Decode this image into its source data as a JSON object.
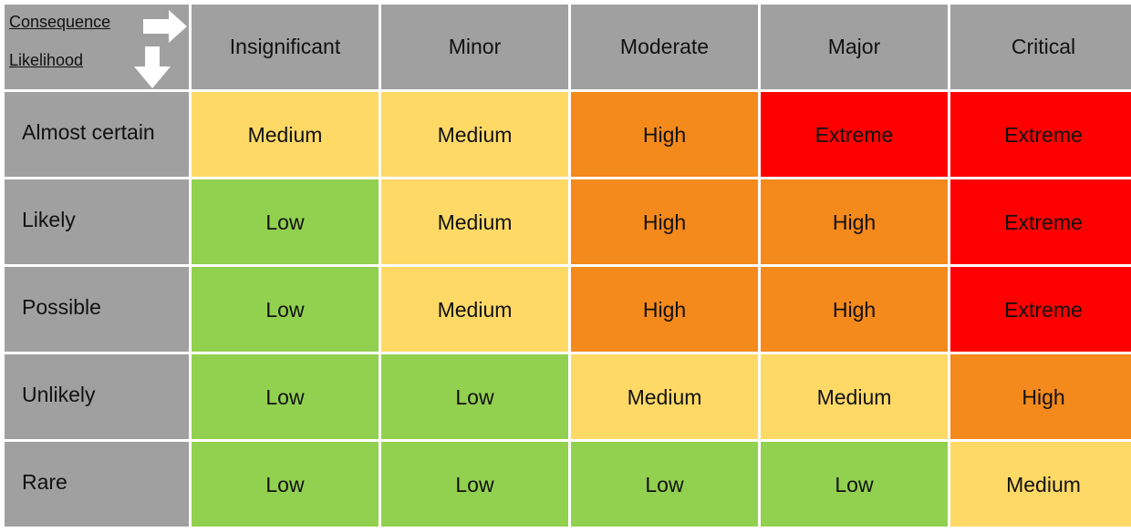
{
  "corner": {
    "consequence_label": "Consequence",
    "likelihood_label": "Likelihood",
    "right_arrow_icon": "arrow-right-icon",
    "down_arrow_icon": "arrow-down-icon"
  },
  "columns": [
    "Insignificant",
    "Minor",
    "Moderate",
    "Major",
    "Critical"
  ],
  "rows": [
    {
      "label": "Almost certain",
      "cells": [
        "Medium",
        "Medium",
        "High",
        "Extreme",
        "Extreme"
      ]
    },
    {
      "label": "Likely",
      "cells": [
        "Low",
        "Medium",
        "High",
        "High",
        "Extreme"
      ]
    },
    {
      "label": "Possible",
      "cells": [
        "Low",
        "Medium",
        "High",
        "High",
        "Extreme"
      ]
    },
    {
      "label": "Unlikely",
      "cells": [
        "Low",
        "Low",
        "Medium",
        "Medium",
        "High"
      ]
    },
    {
      "label": "Rare",
      "cells": [
        "Low",
        "Low",
        "Low",
        "Low",
        "Medium"
      ]
    }
  ],
  "colors": {
    "header_gray": "#a0a0a0",
    "Low": "#92d050",
    "Medium": "#ffd966",
    "High": "#f4891c",
    "Extreme": "#ff0000"
  }
}
